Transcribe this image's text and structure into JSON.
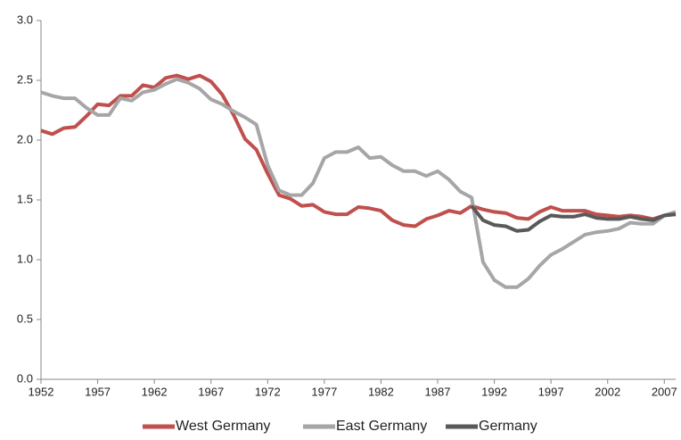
{
  "chart_data": {
    "type": "line",
    "x": [
      1952,
      1953,
      1954,
      1955,
      1956,
      1957,
      1958,
      1959,
      1960,
      1961,
      1962,
      1963,
      1964,
      1965,
      1966,
      1967,
      1968,
      1969,
      1970,
      1971,
      1972,
      1973,
      1974,
      1975,
      1976,
      1977,
      1978,
      1979,
      1980,
      1981,
      1982,
      1983,
      1984,
      1985,
      1986,
      1987,
      1988,
      1989,
      1990,
      1991,
      1992,
      1993,
      1994,
      1995,
      1996,
      1997,
      1998,
      1999,
      2000,
      2001,
      2002,
      2003,
      2004,
      2005,
      2006,
      2007,
      2008
    ],
    "series": [
      {
        "name": "West Germany",
        "color": "#c0504d",
        "values": [
          2.08,
          2.05,
          2.1,
          2.11,
          2.2,
          2.3,
          2.29,
          2.37,
          2.37,
          2.46,
          2.44,
          2.52,
          2.54,
          2.51,
          2.54,
          2.49,
          2.38,
          2.21,
          2.01,
          1.92,
          1.72,
          1.54,
          1.51,
          1.45,
          1.46,
          1.4,
          1.38,
          1.38,
          1.44,
          1.43,
          1.41,
          1.33,
          1.29,
          1.28,
          1.34,
          1.37,
          1.41,
          1.39,
          1.45,
          1.42,
          1.4,
          1.39,
          1.35,
          1.34,
          1.4,
          1.44,
          1.41,
          1.41,
          1.41,
          1.38,
          1.37,
          1.36,
          1.37,
          1.36,
          1.34,
          1.37,
          1.38
        ]
      },
      {
        "name": "East Germany",
        "color": "#a6a6a6",
        "values": [
          2.4,
          2.37,
          2.35,
          2.35,
          2.27,
          2.21,
          2.21,
          2.35,
          2.33,
          2.4,
          2.42,
          2.47,
          2.51,
          2.48,
          2.43,
          2.34,
          2.3,
          2.24,
          2.19,
          2.13,
          1.79,
          1.58,
          1.54,
          1.54,
          1.64,
          1.85,
          1.9,
          1.9,
          1.94,
          1.85,
          1.86,
          1.79,
          1.74,
          1.74,
          1.7,
          1.74,
          1.67,
          1.57,
          1.52,
          0.98,
          0.83,
          0.77,
          0.77,
          0.84,
          0.95,
          1.04,
          1.09,
          1.15,
          1.21,
          1.23,
          1.24,
          1.26,
          1.31,
          1.3,
          1.3,
          1.37,
          1.4
        ]
      },
      {
        "name": "Germany",
        "color": "#595959",
        "values": [
          null,
          null,
          null,
          null,
          null,
          null,
          null,
          null,
          null,
          null,
          null,
          null,
          null,
          null,
          null,
          null,
          null,
          null,
          null,
          null,
          null,
          null,
          null,
          null,
          null,
          null,
          null,
          null,
          null,
          null,
          null,
          null,
          null,
          null,
          null,
          null,
          null,
          null,
          1.45,
          1.33,
          1.29,
          1.28,
          1.24,
          1.25,
          1.32,
          1.37,
          1.36,
          1.36,
          1.38,
          1.35,
          1.34,
          1.34,
          1.36,
          1.34,
          1.33,
          1.37,
          1.38
        ]
      }
    ],
    "xlim": [
      1952,
      2008
    ],
    "xticks": [
      1952,
      1957,
      1962,
      1967,
      1972,
      1977,
      1982,
      1987,
      1992,
      1997,
      2002,
      2007
    ],
    "ylim": [
      0,
      3
    ],
    "yticks": [
      {
        "value": 0,
        "label": "0.0"
      },
      {
        "value": 0.5,
        "label": "0.5"
      },
      {
        "value": 1,
        "label": "1.0"
      },
      {
        "value": 1.5,
        "label": "1.5"
      },
      {
        "value": 2,
        "label": "2.0"
      },
      {
        "value": 2.5,
        "label": "2.5"
      },
      {
        "value": 3,
        "label": "3.0"
      }
    ],
    "grid": false,
    "legend": "bottom"
  }
}
